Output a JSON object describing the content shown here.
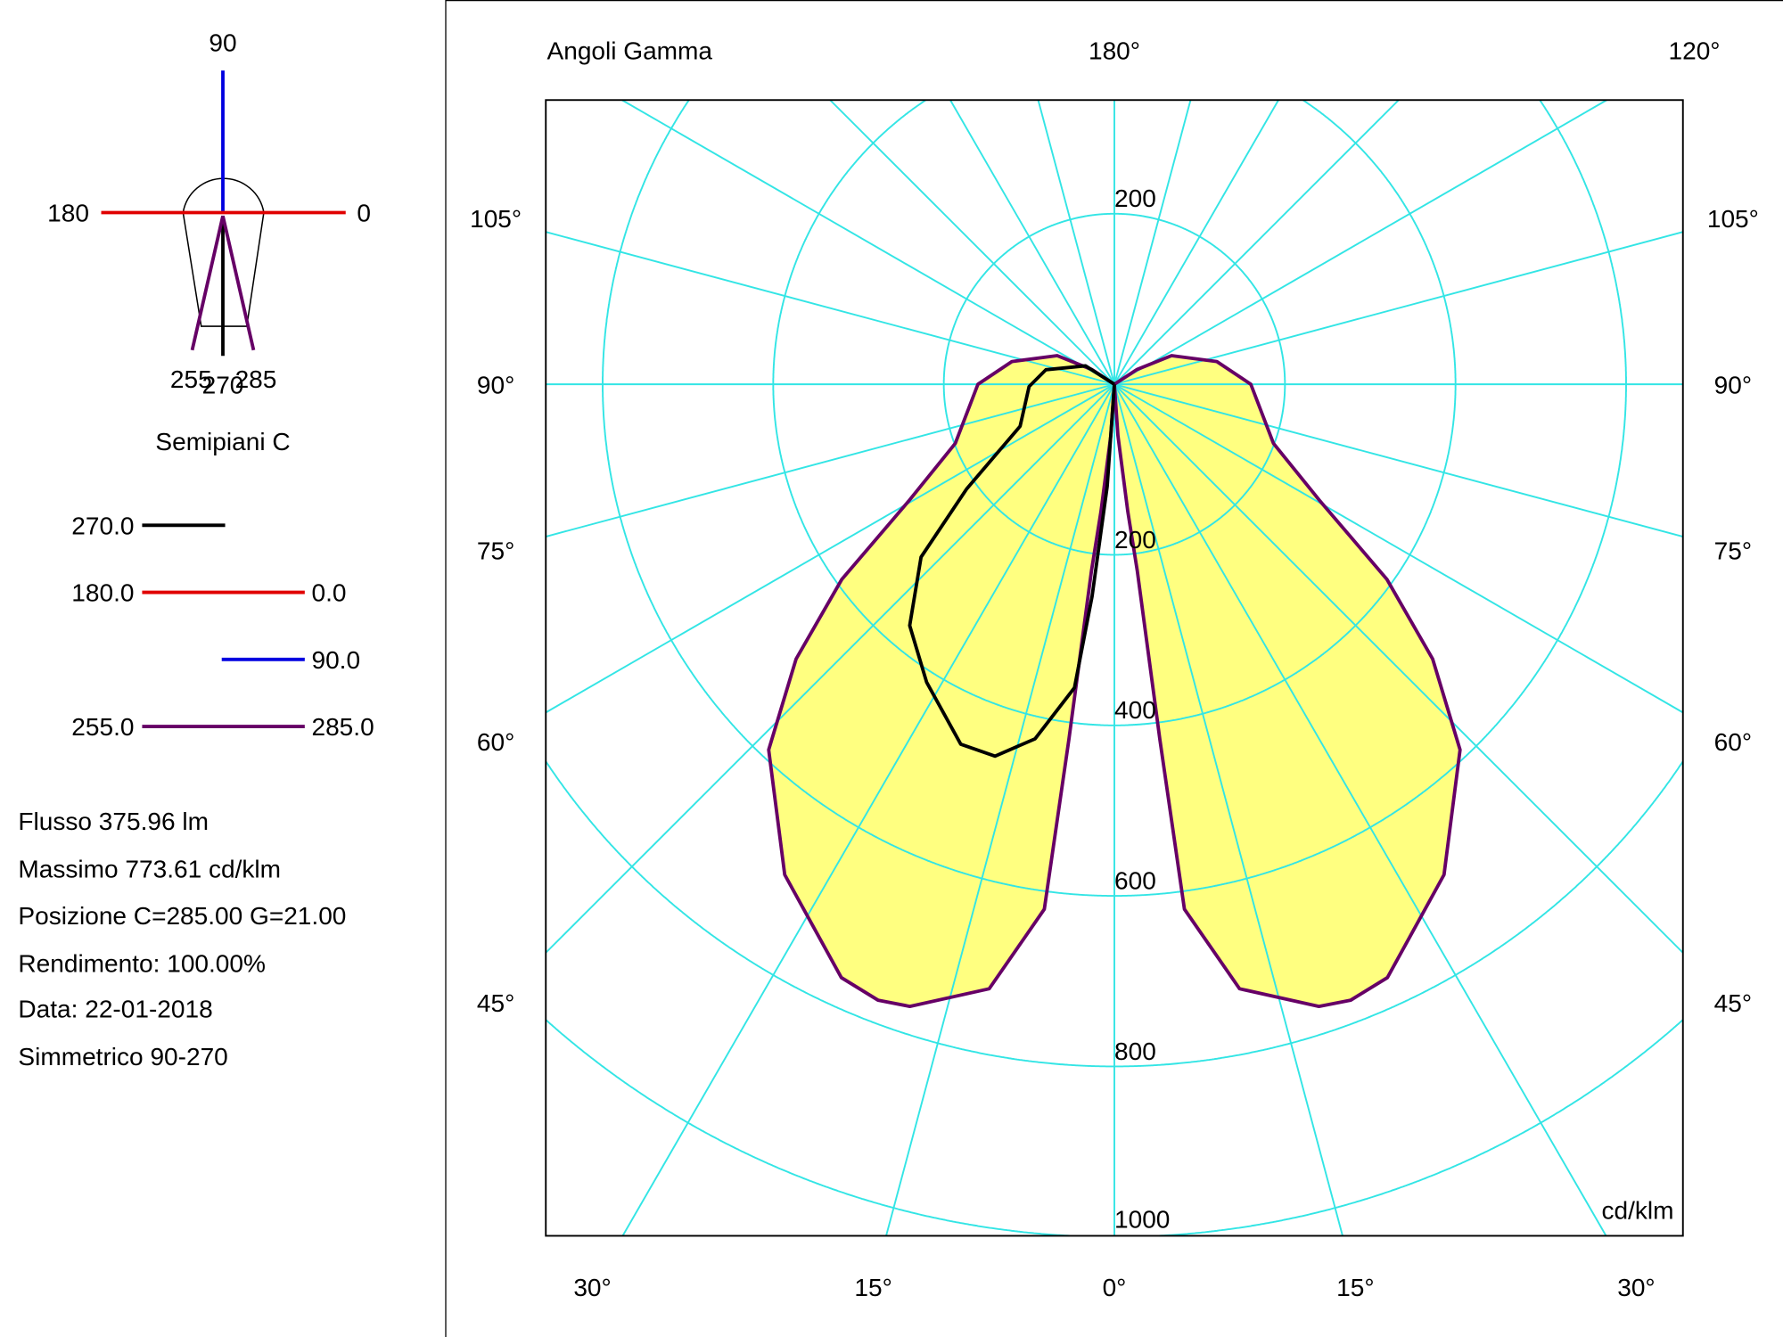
{
  "left_panel": {
    "compass_labels": {
      "top": "90",
      "left": "180",
      "right": "0",
      "bottom_left": "255",
      "bottom_mid": "270",
      "bottom_right": "285"
    },
    "legend_title": "Semipiani C",
    "legend": [
      {
        "left": "270.0",
        "right": "",
        "color": "#000000"
      },
      {
        "left": "180.0",
        "right": "0.0",
        "color": "#e00000"
      },
      {
        "left": "",
        "right": "90.0",
        "color": "#0000e0"
      },
      {
        "left": "255.0",
        "right": "285.0",
        "color": "#660066"
      }
    ],
    "info": [
      "Flusso 375.96  lm",
      "Massimo 773.61  cd/klm",
      "Posizione C=285.00 G=21.00",
      "Rendimento: 100.00%",
      "Data: 22-01-2018",
      "Simmetrico 90-270"
    ]
  },
  "chart_data": {
    "type": "polar",
    "title": "Angoli Gamma",
    "unit": "cd/klm",
    "top_labels": [
      "180°",
      "120°"
    ],
    "left_angle_labels": [
      "105°",
      "90°",
      "75°",
      "60°",
      "45°"
    ],
    "right_angle_labels": [
      "105°",
      "90°",
      "75°",
      "60°",
      "45°"
    ],
    "bottom_angle_labels": [
      "30°",
      "15°",
      "0°",
      "15°",
      "30°"
    ],
    "ring_values": [
      200,
      400,
      600,
      800,
      1000
    ],
    "ring_labels": [
      "200",
      "200",
      "400",
      "600",
      "800",
      "1000"
    ],
    "radial_step_deg": 15,
    "grid": true,
    "colors": {
      "grid": "#33e5e5",
      "fill": "#ffff80",
      "c255_285": "#660066",
      "c270": "#000000"
    },
    "series": [
      {
        "name": "255.0 / 285.0",
        "mirrored": true,
        "points_gamma_intensity": [
          [
            0,
            0
          ],
          [
            4,
            60
          ],
          [
            6,
            150
          ],
          [
            7,
            220
          ],
          [
            7.3,
            420
          ],
          [
            7.6,
            621
          ],
          [
            11.7,
            724
          ],
          [
            18.2,
            768
          ],
          [
            21,
            773.61
          ],
          [
            24.7,
            766
          ],
          [
            33.9,
            693
          ],
          [
            43.4,
            590
          ],
          [
            49.2,
            493
          ],
          [
            54.4,
            393
          ],
          [
            60.5,
            276
          ],
          [
            69.6,
            199
          ],
          [
            90,
            160
          ],
          [
            102.5,
            123
          ],
          [
            116.6,
            75
          ],
          [
            123,
            32
          ],
          [
            180,
            0
          ]
        ]
      },
      {
        "name": "270.0",
        "mirrored": false,
        "points_gamma_intensity": [
          [
            0,
            0
          ],
          [
            4,
            120
          ],
          [
            6,
            250
          ],
          [
            7.5,
            359
          ],
          [
            12.6,
            426
          ],
          [
            17.8,
            458
          ],
          [
            23.1,
            459
          ],
          [
            32.2,
            413
          ],
          [
            40.3,
            371
          ],
          [
            48.2,
            304
          ],
          [
            54.7,
            212
          ],
          [
            66,
            121
          ],
          [
            88.5,
            100
          ],
          [
            102,
            82
          ],
          [
            122.6,
            40
          ],
          [
            180,
            0
          ]
        ]
      }
    ]
  }
}
